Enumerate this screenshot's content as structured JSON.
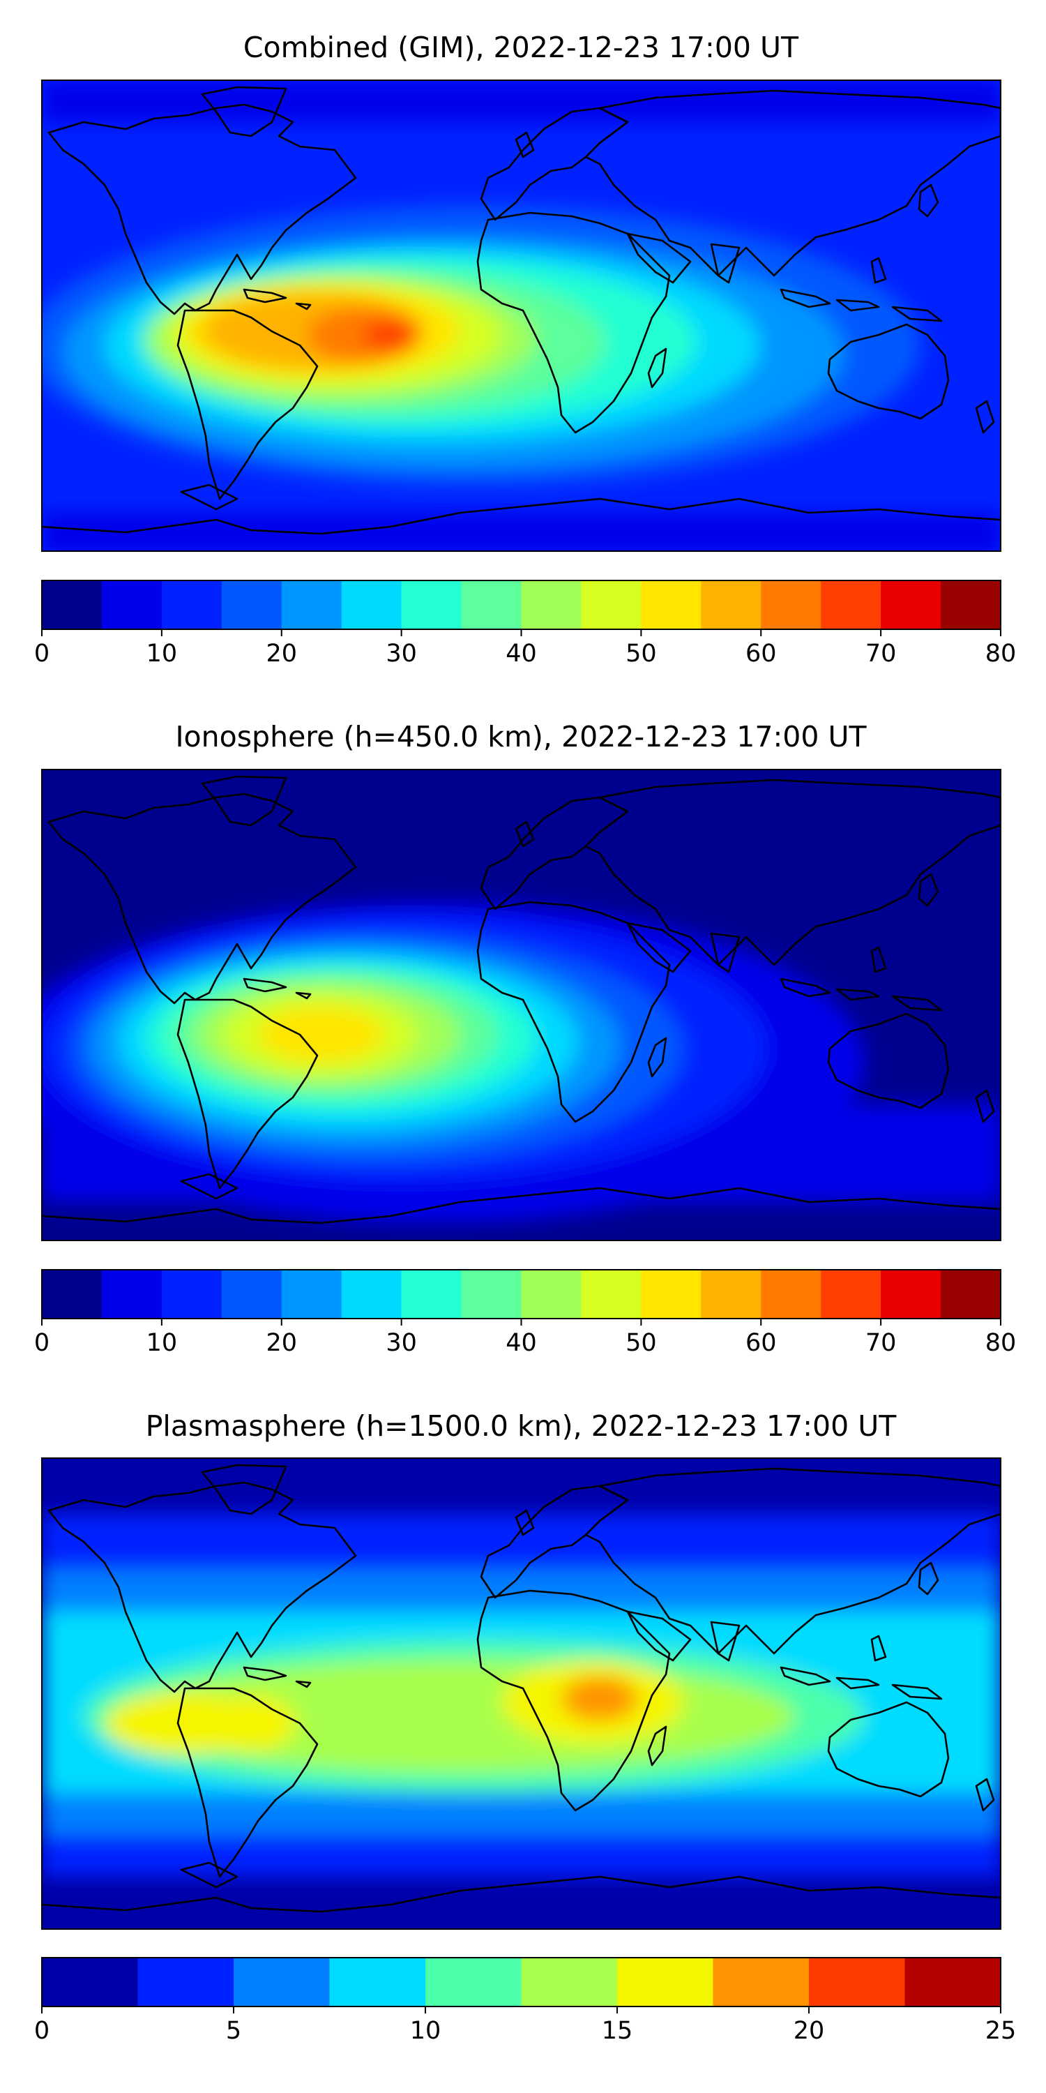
{
  "charts": [
    {
      "title": "Combined (GIM), 2022-12-23 17:00 UT",
      "colorbar": {
        "vmin": 0,
        "vmax": 80,
        "levels": [
          0,
          5,
          10,
          15,
          20,
          25,
          30,
          35,
          40,
          45,
          50,
          55,
          60,
          65,
          70,
          75,
          80
        ],
        "ticks": [
          "0",
          "10",
          "20",
          "30",
          "40",
          "50",
          "60",
          "70",
          "80"
        ],
        "colors": [
          "#00008f",
          "#0000ea",
          "#0022ff",
          "#0059ff",
          "#0096ff",
          "#00d9ff",
          "#24ffd3",
          "#5cff9b",
          "#a1ff56",
          "#d6ff21",
          "#ffe500",
          "#ffb300",
          "#ff7a00",
          "#ff4000",
          "#e80000",
          "#990000"
        ]
      }
    },
    {
      "title": "Ionosphere  (h=450.0 km), 2022-12-23 17:00 UT",
      "colorbar": {
        "vmin": 0,
        "vmax": 80,
        "levels": [
          0,
          5,
          10,
          15,
          20,
          25,
          30,
          35,
          40,
          45,
          50,
          55,
          60,
          65,
          70,
          75,
          80
        ],
        "ticks": [
          "0",
          "10",
          "20",
          "30",
          "40",
          "50",
          "60",
          "70",
          "80"
        ],
        "colors": [
          "#00008f",
          "#0000ea",
          "#0022ff",
          "#0059ff",
          "#0096ff",
          "#00d9ff",
          "#24ffd3",
          "#5cff9b",
          "#a1ff56",
          "#d6ff21",
          "#ffe500",
          "#ffb300",
          "#ff7a00",
          "#ff4000",
          "#e80000",
          "#990000"
        ]
      }
    },
    {
      "title": "Plasmasphere (h=1500.0 km), 2022-12-23 17:00 UT",
      "colorbar": {
        "vmin": 0,
        "vmax": 25,
        "levels": [
          0,
          2.5,
          5,
          7.5,
          10,
          12.5,
          15,
          17.5,
          20,
          22.5,
          25
        ],
        "ticks": [
          "0",
          "5",
          "10",
          "15",
          "20",
          "25"
        ],
        "colors": [
          "#0000a8",
          "#0022ff",
          "#0080ff",
          "#00dcff",
          "#4cffab",
          "#a8ff4c",
          "#f5f500",
          "#ff9400",
          "#ff3b00",
          "#b50000"
        ]
      }
    }
  ],
  "chart_data": [
    {
      "type": "heatmap",
      "title": "Combined (GIM), 2022-12-23 17:00 UT",
      "zlim": [
        0,
        80
      ],
      "regions": [
        {
          "region": "background ocean / high latitudes",
          "value": 10
        },
        {
          "region": "North Atlantic",
          "value": 20
        },
        {
          "region": "Pacific west of Americas",
          "value": 35
        },
        {
          "region": "Equatorial Atlantic",
          "value": 50
        },
        {
          "region": "West Africa",
          "value": 52
        },
        {
          "region": "Indian Ocean",
          "value": 30
        },
        {
          "region": "South America peak",
          "value": 67
        }
      ]
    },
    {
      "type": "heatmap",
      "title": "Ionosphere  (h=450.0 km), 2022-12-23 17:00 UT",
      "zlim": [
        0,
        80
      ],
      "regions": [
        {
          "region": "background",
          "value": 5
        },
        {
          "region": "Atlantic / Americas",
          "value": 30
        },
        {
          "region": "Equatorial Atlantic",
          "value": 45
        },
        {
          "region": "Southern Africa",
          "value": 40
        },
        {
          "region": "Indian Ocean",
          "value": 18
        },
        {
          "region": "South America peak",
          "value": 52
        }
      ]
    },
    {
      "type": "heatmap",
      "title": "Plasmasphere (h=1500.0 km), 2022-12-23 17:00 UT",
      "zlim": [
        0,
        25
      ],
      "regions": [
        {
          "region": "polar regions",
          "value": 2
        },
        {
          "region": "mid latitudes",
          "value": 6
        },
        {
          "region": "tropical belt",
          "value": 12
        },
        {
          "region": "Central Pacific",
          "value": 16
        },
        {
          "region": "Brazil",
          "value": 16
        },
        {
          "region": "Central Africa",
          "value": 15.5
        },
        {
          "region": "East Africa peak",
          "value": 18.5
        }
      ]
    }
  ]
}
